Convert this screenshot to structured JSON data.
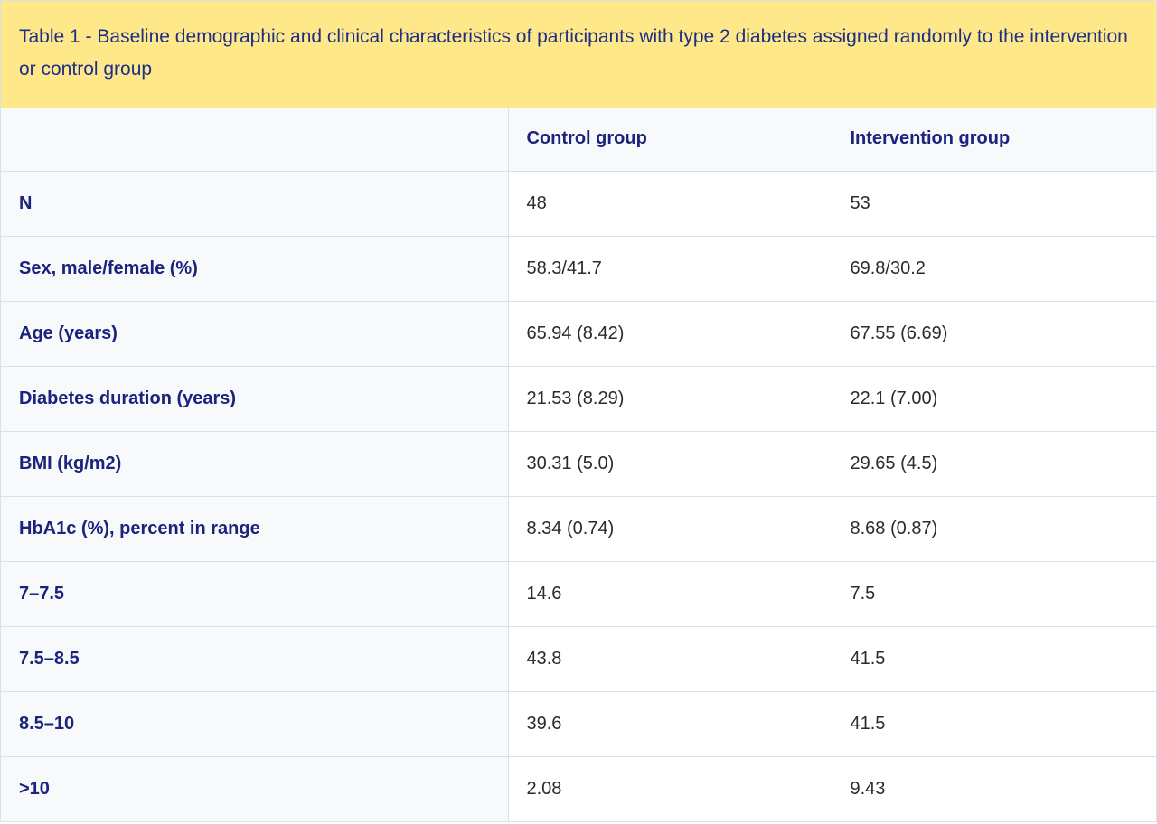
{
  "caption": "Table 1 - Baseline demographic and clinical characteristics of participants with type 2 diabetes assigned randomly to the intervention or control group",
  "columns": [
    "",
    "Control group",
    "Intervention group"
  ],
  "rows": [
    {
      "label": "N",
      "control": "48",
      "intervention": "53"
    },
    {
      "label": "Sex, male/female (%)",
      "control": "58.3/41.7",
      "intervention": "69.8/30.2"
    },
    {
      "label": "Age (years)",
      "control": "65.94 (8.42)",
      "intervention": "67.55 (6.69)"
    },
    {
      "label": "Diabetes duration (years)",
      "control": "21.53 (8.29)",
      "intervention": "22.1 (7.00)"
    },
    {
      "label": "BMI (kg/m2)",
      "control": "30.31 (5.0)",
      "intervention": "29.65 (4.5)"
    },
    {
      "label": "HbA1c (%), percent in range",
      "control": "8.34 (0.74)",
      "intervention": "8.68 (0.87)"
    },
    {
      "label": "7–7.5",
      "control": "14.6",
      "intervention": "7.5"
    },
    {
      "label": "7.5–8.5",
      "control": "43.8",
      "intervention": "41.5"
    },
    {
      "label": "8.5–10",
      "control": "39.6",
      "intervention": "41.5"
    },
    {
      "label": ">10",
      "control": "2.08",
      "intervention": "9.43"
    }
  ],
  "colors": {
    "caption_background": "#ffe88a",
    "header_text": "#1a237e",
    "label_background": "#f8f9fb",
    "border": "#d7e1ee"
  }
}
